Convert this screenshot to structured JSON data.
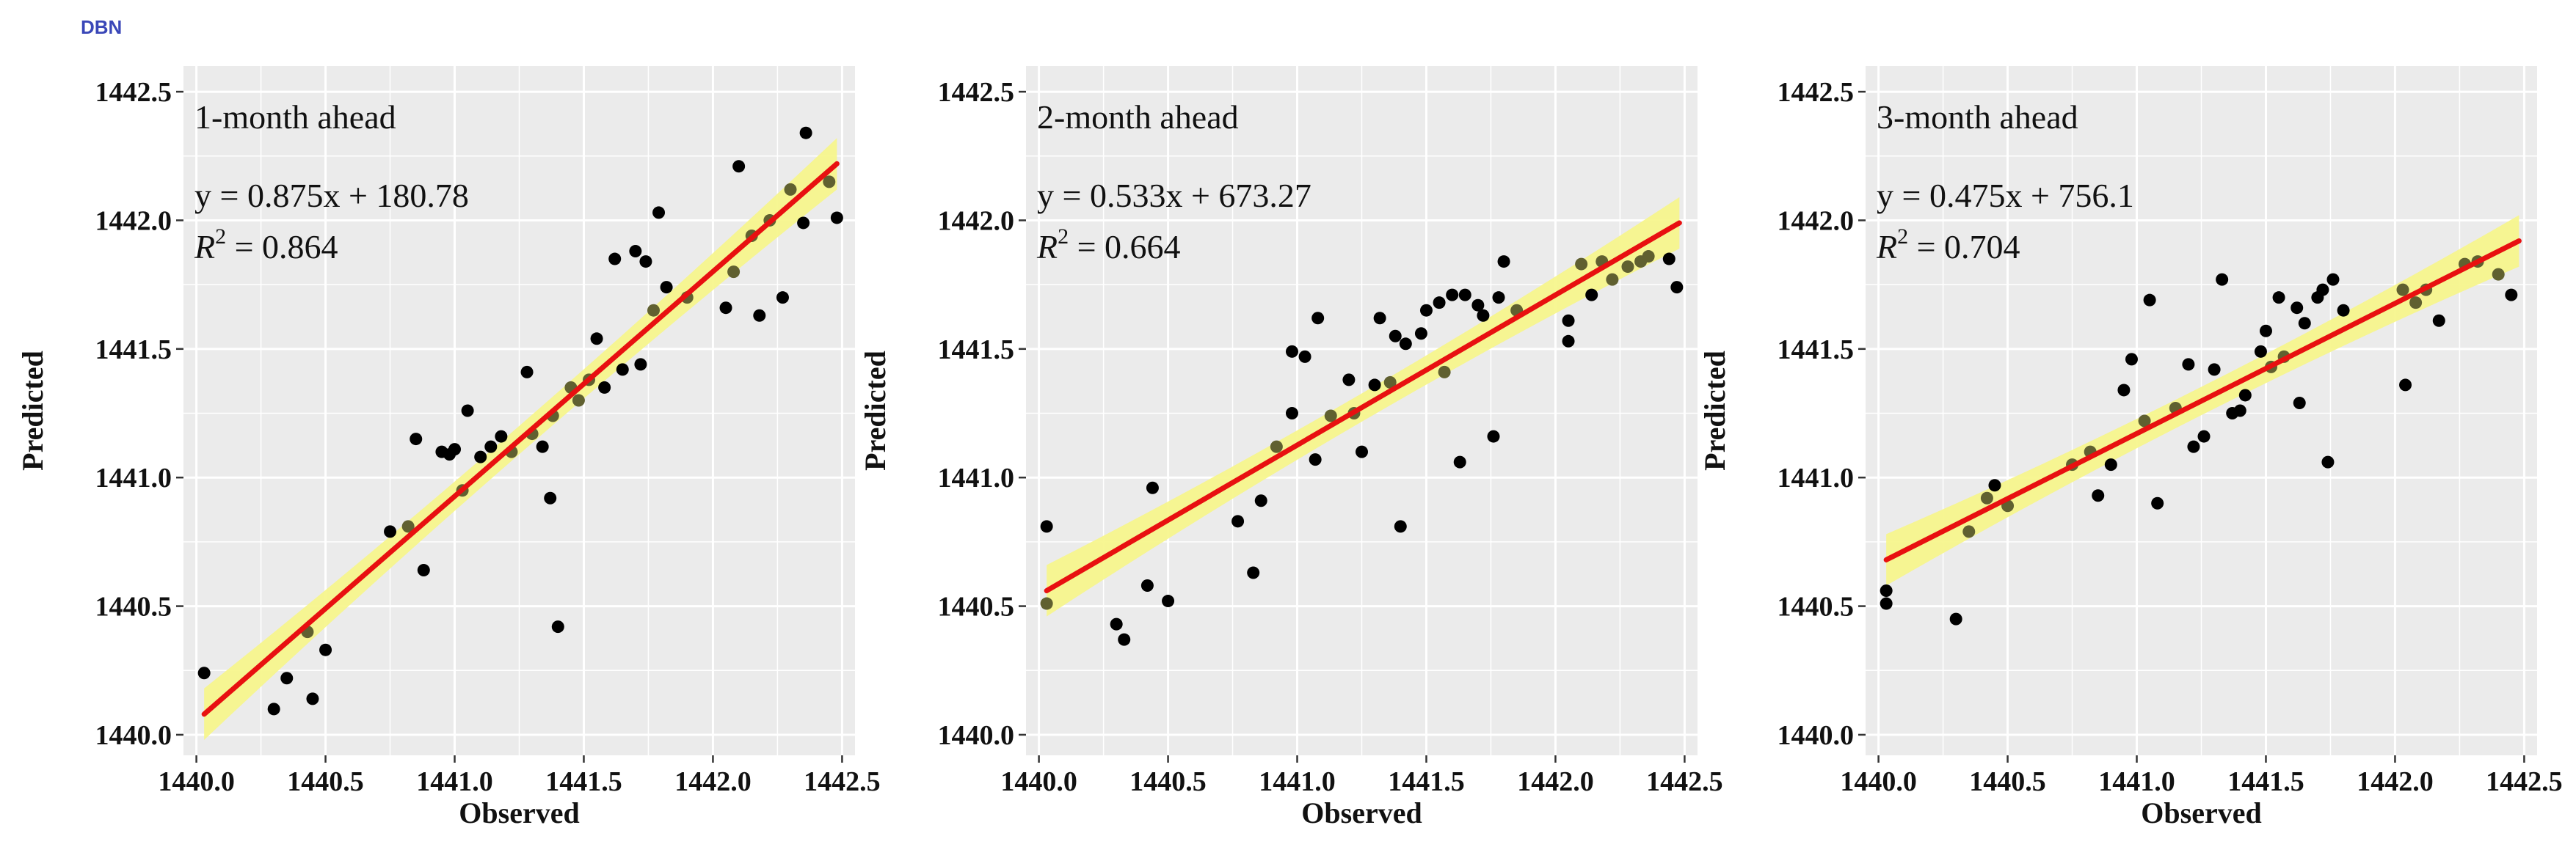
{
  "page_label": "DBN",
  "chart_data": [
    {
      "type": "scatter",
      "title": "1-month ahead",
      "equation": "y = 0.875x + 180.78",
      "r2_label": "R",
      "r2_sup": "2",
      "r2_value": " = 0.864",
      "xlabel": "Observed",
      "ylabel": "Predicted",
      "xlim": [
        1439.95,
        1442.55
      ],
      "ylim": [
        1439.92,
        1442.6
      ],
      "xticks": [
        1440.0,
        1440.5,
        1441.0,
        1441.5,
        1442.0,
        1442.5
      ],
      "yticks": [
        1440.0,
        1440.5,
        1441.0,
        1441.5,
        1442.0,
        1442.5
      ],
      "xtick_labels": [
        "1440.0",
        "1440.5",
        "1441.0",
        "1441.5",
        "1442.0",
        "1442.5"
      ],
      "ytick_labels": [
        "1440.0",
        "1440.5",
        "1441.0",
        "1441.5",
        "1442.0",
        "1442.5"
      ],
      "grid": true,
      "fit": {
        "slope": 0.875,
        "intercept": 180.78,
        "x_range": [
          1440.03,
          1442.48
        ],
        "y_range": [
          1440.08,
          1442.22
        ],
        "band": 0.1
      },
      "colors": {
        "panel": "#ebebeb",
        "grid": "#ffffff",
        "line": "#e81010",
        "band": "#f6f58a",
        "point": "#000000",
        "point_on_band": "#606030"
      },
      "points": [
        [
          1440.03,
          1440.24
        ],
        [
          1440.3,
          1440.1
        ],
        [
          1440.35,
          1440.22
        ],
        [
          1440.43,
          1440.4
        ],
        [
          1440.45,
          1440.14
        ],
        [
          1440.5,
          1440.33
        ],
        [
          1440.75,
          1440.79
        ],
        [
          1440.82,
          1440.81
        ],
        [
          1440.85,
          1441.15
        ],
        [
          1440.88,
          1440.64
        ],
        [
          1440.95,
          1441.1
        ],
        [
          1440.98,
          1441.09
        ],
        [
          1441.0,
          1441.11
        ],
        [
          1441.03,
          1440.95
        ],
        [
          1441.05,
          1441.26
        ],
        [
          1441.1,
          1441.08
        ],
        [
          1441.14,
          1441.12
        ],
        [
          1441.18,
          1441.16
        ],
        [
          1441.22,
          1441.1
        ],
        [
          1441.28,
          1441.41
        ],
        [
          1441.3,
          1441.17
        ],
        [
          1441.34,
          1441.12
        ],
        [
          1441.37,
          1440.92
        ],
        [
          1441.4,
          1440.42
        ],
        [
          1441.38,
          1441.24
        ],
        [
          1441.45,
          1441.35
        ],
        [
          1441.48,
          1441.3
        ],
        [
          1441.52,
          1441.38
        ],
        [
          1441.55,
          1441.54
        ],
        [
          1441.58,
          1441.35
        ],
        [
          1441.62,
          1441.85
        ],
        [
          1441.65,
          1441.42
        ],
        [
          1441.7,
          1441.88
        ],
        [
          1441.72,
          1441.44
        ],
        [
          1441.74,
          1441.84
        ],
        [
          1441.77,
          1441.65
        ],
        [
          1441.79,
          1442.03
        ],
        [
          1441.82,
          1441.74
        ],
        [
          1441.9,
          1441.7
        ],
        [
          1442.05,
          1441.66
        ],
        [
          1442.08,
          1441.8
        ],
        [
          1442.1,
          1442.21
        ],
        [
          1442.15,
          1441.94
        ],
        [
          1442.18,
          1441.63
        ],
        [
          1442.22,
          1442.0
        ],
        [
          1442.27,
          1441.7
        ],
        [
          1442.3,
          1442.12
        ],
        [
          1442.35,
          1441.99
        ],
        [
          1442.36,
          1442.34
        ],
        [
          1442.45,
          1442.15
        ],
        [
          1442.48,
          1442.01
        ]
      ]
    },
    {
      "type": "scatter",
      "title": "2-month ahead",
      "equation": "y = 0.533x + 673.27",
      "r2_label": "R",
      "r2_sup": "2",
      "r2_value": " = 0.664",
      "xlabel": "Observed",
      "ylabel": "Predicted",
      "xlim": [
        1439.95,
        1442.55
      ],
      "ylim": [
        1439.92,
        1442.6
      ],
      "xticks": [
        1440.0,
        1440.5,
        1441.0,
        1441.5,
        1442.0,
        1442.5
      ],
      "yticks": [
        1440.0,
        1440.5,
        1441.0,
        1441.5,
        1442.0,
        1442.5
      ],
      "xtick_labels": [
        "1440.0",
        "1440.5",
        "1441.0",
        "1441.5",
        "1442.0",
        "1442.5"
      ],
      "ytick_labels": [
        "1440.0",
        "1440.5",
        "1441.0",
        "1441.5",
        "1442.0",
        "1442.5"
      ],
      "grid": true,
      "fit": {
        "slope": 0.533,
        "intercept": 673.27,
        "x_range": [
          1440.03,
          1442.48
        ],
        "y_range": [
          1440.56,
          1441.99
        ],
        "band": 0.1
      },
      "colors": {
        "panel": "#ebebeb",
        "grid": "#ffffff",
        "line": "#e81010",
        "band": "#f6f58a",
        "point": "#000000",
        "point_on_band": "#606030"
      },
      "points": [
        [
          1440.03,
          1440.81
        ],
        [
          1440.03,
          1440.51
        ],
        [
          1440.3,
          1440.43
        ],
        [
          1440.33,
          1440.37
        ],
        [
          1440.42,
          1440.58
        ],
        [
          1440.44,
          1440.96
        ],
        [
          1440.5,
          1440.52
        ],
        [
          1440.77,
          1440.83
        ],
        [
          1440.83,
          1440.63
        ],
        [
          1440.86,
          1440.91
        ],
        [
          1440.92,
          1441.12
        ],
        [
          1440.98,
          1441.25
        ],
        [
          1440.98,
          1441.49
        ],
        [
          1441.03,
          1441.47
        ],
        [
          1441.07,
          1441.07
        ],
        [
          1441.08,
          1441.62
        ],
        [
          1441.13,
          1441.24
        ],
        [
          1441.2,
          1441.38
        ],
        [
          1441.22,
          1441.25
        ],
        [
          1441.25,
          1441.1
        ],
        [
          1441.3,
          1441.36
        ],
        [
          1441.32,
          1441.62
        ],
        [
          1441.36,
          1441.37
        ],
        [
          1441.38,
          1441.55
        ],
        [
          1441.4,
          1440.81
        ],
        [
          1441.42,
          1441.52
        ],
        [
          1441.48,
          1441.56
        ],
        [
          1441.5,
          1441.65
        ],
        [
          1441.55,
          1441.68
        ],
        [
          1441.57,
          1441.41
        ],
        [
          1441.6,
          1441.71
        ],
        [
          1441.63,
          1441.06
        ],
        [
          1441.65,
          1441.71
        ],
        [
          1441.7,
          1441.67
        ],
        [
          1441.72,
          1441.63
        ],
        [
          1441.76,
          1441.16
        ],
        [
          1441.78,
          1441.7
        ],
        [
          1441.8,
          1441.84
        ],
        [
          1441.85,
          1441.65
        ],
        [
          1442.05,
          1441.61
        ],
        [
          1442.05,
          1441.53
        ],
        [
          1442.1,
          1441.83
        ],
        [
          1442.14,
          1441.71
        ],
        [
          1442.18,
          1441.84
        ],
        [
          1442.22,
          1441.77
        ],
        [
          1442.28,
          1441.82
        ],
        [
          1442.33,
          1441.84
        ],
        [
          1442.36,
          1441.86
        ],
        [
          1442.44,
          1441.85
        ],
        [
          1442.47,
          1441.74
        ]
      ]
    },
    {
      "type": "scatter",
      "title": "3-month ahead",
      "equation": "y = 0.475x + 756.1",
      "r2_label": "R",
      "r2_sup": "2",
      "r2_value": " = 0.704",
      "xlabel": "Observed",
      "ylabel": "Predicted",
      "xlim": [
        1439.95,
        1442.55
      ],
      "ylim": [
        1439.92,
        1442.6
      ],
      "xticks": [
        1440.0,
        1440.5,
        1441.0,
        1441.5,
        1442.0,
        1442.5
      ],
      "yticks": [
        1440.0,
        1440.5,
        1441.0,
        1441.5,
        1442.0,
        1442.5
      ],
      "xtick_labels": [
        "1440.0",
        "1440.5",
        "1441.0",
        "1441.5",
        "1442.0",
        "1442.5"
      ],
      "ytick_labels": [
        "1440.0",
        "1440.5",
        "1441.0",
        "1441.5",
        "1442.0",
        "1442.5"
      ],
      "grid": true,
      "fit": {
        "slope": 0.475,
        "intercept": 756.1,
        "x_range": [
          1440.03,
          1442.48
        ],
        "y_range": [
          1440.68,
          1441.92
        ],
        "band": 0.1
      },
      "colors": {
        "panel": "#ebebeb",
        "grid": "#ffffff",
        "line": "#e81010",
        "band": "#f6f58a",
        "point": "#000000",
        "point_on_band": "#606030"
      },
      "points": [
        [
          1440.03,
          1440.56
        ],
        [
          1440.03,
          1440.51
        ],
        [
          1440.3,
          1440.45
        ],
        [
          1440.35,
          1440.79
        ],
        [
          1440.42,
          1440.92
        ],
        [
          1440.45,
          1440.97
        ],
        [
          1440.5,
          1440.89
        ],
        [
          1440.75,
          1441.05
        ],
        [
          1440.82,
          1441.1
        ],
        [
          1440.85,
          1440.93
        ],
        [
          1440.9,
          1441.05
        ],
        [
          1440.95,
          1441.34
        ],
        [
          1440.98,
          1441.46
        ],
        [
          1441.03,
          1441.22
        ],
        [
          1441.05,
          1441.69
        ],
        [
          1441.08,
          1440.9
        ],
        [
          1441.15,
          1441.27
        ],
        [
          1441.2,
          1441.44
        ],
        [
          1441.22,
          1441.12
        ],
        [
          1441.26,
          1441.16
        ],
        [
          1441.3,
          1441.42
        ],
        [
          1441.33,
          1441.77
        ],
        [
          1441.37,
          1441.25
        ],
        [
          1441.4,
          1441.26
        ],
        [
          1441.42,
          1441.32
        ],
        [
          1441.48,
          1441.49
        ],
        [
          1441.5,
          1441.57
        ],
        [
          1441.52,
          1441.43
        ],
        [
          1441.55,
          1441.7
        ],
        [
          1441.57,
          1441.47
        ],
        [
          1441.62,
          1441.66
        ],
        [
          1441.63,
          1441.29
        ],
        [
          1441.65,
          1441.6
        ],
        [
          1441.7,
          1441.7
        ],
        [
          1441.72,
          1441.73
        ],
        [
          1441.74,
          1441.06
        ],
        [
          1441.76,
          1441.77
        ],
        [
          1441.8,
          1441.65
        ],
        [
          1442.03,
          1441.73
        ],
        [
          1442.04,
          1441.36
        ],
        [
          1442.08,
          1441.68
        ],
        [
          1442.12,
          1441.73
        ],
        [
          1442.17,
          1441.61
        ],
        [
          1442.27,
          1441.83
        ],
        [
          1442.32,
          1441.84
        ],
        [
          1442.4,
          1441.79
        ],
        [
          1442.45,
          1441.71
        ]
      ]
    }
  ]
}
